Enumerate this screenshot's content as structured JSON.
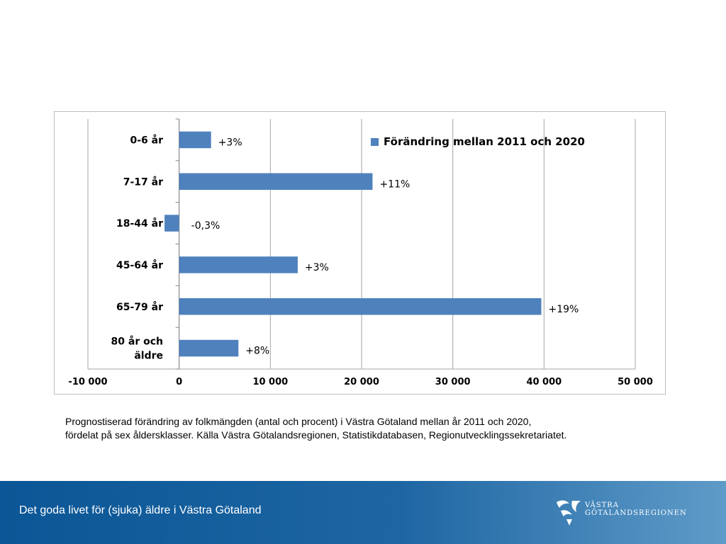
{
  "chart_data": {
    "type": "bar",
    "orientation": "horizontal",
    "categories": [
      "0-6 år",
      "7-17 år",
      "18-44 år",
      "45-64 år",
      "65-79 år",
      "80 år och äldre"
    ],
    "category_lines": [
      [
        "0-6 år"
      ],
      [
        "7-17 år"
      ],
      [
        "18-44 år"
      ],
      [
        "45-64 år"
      ],
      [
        "65-79 år"
      ],
      [
        "80 år och",
        "äldre"
      ]
    ],
    "series": [
      {
        "name": "Förändring mellan 2011 och 2020",
        "color": "#4f81bd",
        "values": [
          3500,
          21200,
          -1600,
          13000,
          39700,
          6500
        ],
        "data_labels": [
          "+3%",
          "+11%",
          "-0,3%",
          "+3%",
          "+19%",
          "+8%"
        ]
      }
    ],
    "xlim": [
      -10000,
      50000
    ],
    "xticks": [
      -10000,
      0,
      10000,
      20000,
      30000,
      40000,
      50000
    ],
    "xtick_labels": [
      "-10 000",
      "0",
      "10 000",
      "20 000",
      "30 000",
      "40 000",
      "50 000"
    ],
    "grid": "vertical",
    "legend": "top-right",
    "title": "",
    "xlabel": "",
    "ylabel": ""
  },
  "caption": {
    "line1": "Prognostiserad förändring av folkmängden (antal och procent) i Västra Götaland mellan år 2011 och 2020,",
    "line2": "fördelat på sex åldersklasser. Källa Västra Götalandsregionen, Statistikdatabasen, Regionutvecklingssekretariatet."
  },
  "footer": {
    "title": "Det goda livet för (sjuka) äldre i Västra Götaland",
    "logo_line1": "VÄSTRA",
    "logo_line2": "GÖTALANDSREGIONEN"
  },
  "colors": {
    "bar": "#4f81bd",
    "footer_dark": "#0b5696",
    "footer_light": "#5f9bc8"
  }
}
